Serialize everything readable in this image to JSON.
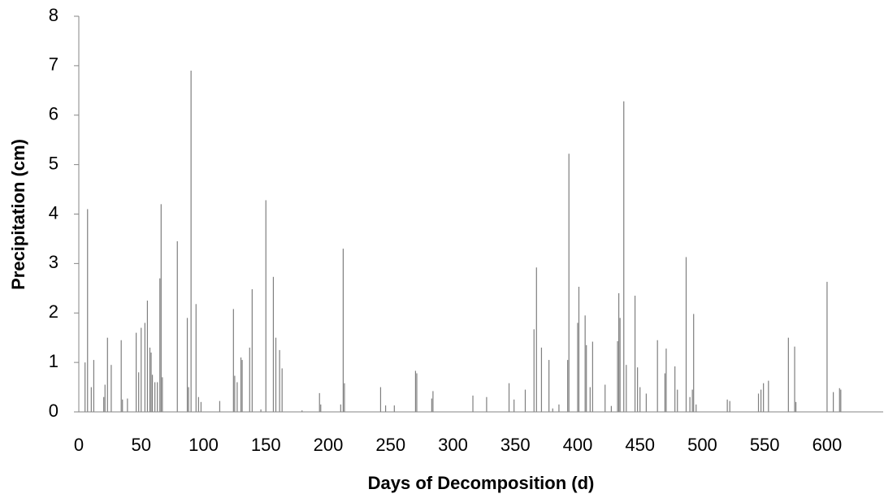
{
  "chart_data": {
    "type": "bar",
    "x_label": "Days of Decomposition (d)",
    "y_label": "Precipitation (cm)",
    "color": "#7f7f7f",
    "x": [
      5,
      7,
      10,
      12,
      20,
      21,
      23,
      26,
      34,
      35,
      39,
      46,
      48,
      50,
      53,
      55,
      57,
      58,
      59,
      61,
      63,
      65,
      66,
      67,
      79,
      87,
      88,
      90,
      94,
      96,
      98,
      113,
      124,
      125,
      127,
      130,
      131,
      137,
      139,
      146,
      150,
      156,
      158,
      161,
      163,
      179,
      193,
      194,
      210,
      212,
      213,
      242,
      246,
      253,
      270,
      271,
      283,
      284,
      316,
      327,
      345,
      349,
      358,
      365,
      367,
      371,
      377,
      380,
      385,
      392,
      393,
      400,
      401,
      406,
      407,
      410,
      412,
      422,
      427,
      432,
      433,
      434,
      437,
      439,
      446,
      448,
      450,
      455,
      464,
      470,
      471,
      478,
      480,
      487,
      490,
      492,
      493,
      495,
      520,
      522,
      545,
      547,
      549,
      553,
      569,
      574,
      575,
      600,
      605,
      610,
      611
    ],
    "values": [
      1.0,
      4.1,
      0.5,
      1.05,
      0.3,
      0.55,
      1.5,
      0.95,
      1.45,
      0.25,
      0.27,
      1.6,
      0.8,
      1.7,
      1.8,
      2.25,
      1.3,
      1.2,
      0.75,
      0.6,
      0.6,
      2.7,
      4.2,
      0.7,
      3.45,
      1.9,
      0.5,
      6.9,
      2.18,
      0.3,
      0.2,
      0.22,
      2.08,
      0.73,
      0.6,
      1.1,
      1.05,
      1.3,
      2.48,
      0.05,
      4.28,
      2.73,
      1.5,
      1.25,
      0.88,
      0.03,
      0.38,
      0.15,
      0.15,
      3.3,
      0.58,
      0.5,
      0.13,
      0.13,
      0.83,
      0.78,
      0.27,
      0.42,
      0.33,
      0.3,
      0.58,
      0.25,
      0.45,
      1.67,
      2.92,
      1.3,
      1.05,
      0.07,
      0.15,
      1.05,
      5.22,
      1.8,
      2.53,
      1.95,
      1.35,
      0.5,
      1.42,
      0.55,
      0.12,
      1.43,
      2.4,
      1.9,
      6.28,
      0.95,
      2.35,
      0.9,
      0.5,
      0.37,
      1.45,
      0.78,
      1.28,
      0.92,
      0.45,
      3.13,
      0.3,
      0.45,
      1.98,
      0.15,
      0.25,
      0.22,
      0.37,
      0.45,
      0.58,
      0.63,
      1.5,
      1.32,
      0.2,
      2.63,
      0.4,
      0.48,
      0.45
    ],
    "xlim": [
      0,
      645
    ],
    "xticks": [
      0,
      50,
      100,
      150,
      200,
      250,
      300,
      350,
      400,
      450,
      500,
      550,
      600
    ],
    "ylim": [
      0,
      8
    ],
    "yticks": [
      0,
      1,
      2,
      3,
      4,
      5,
      6,
      7,
      8
    ]
  }
}
